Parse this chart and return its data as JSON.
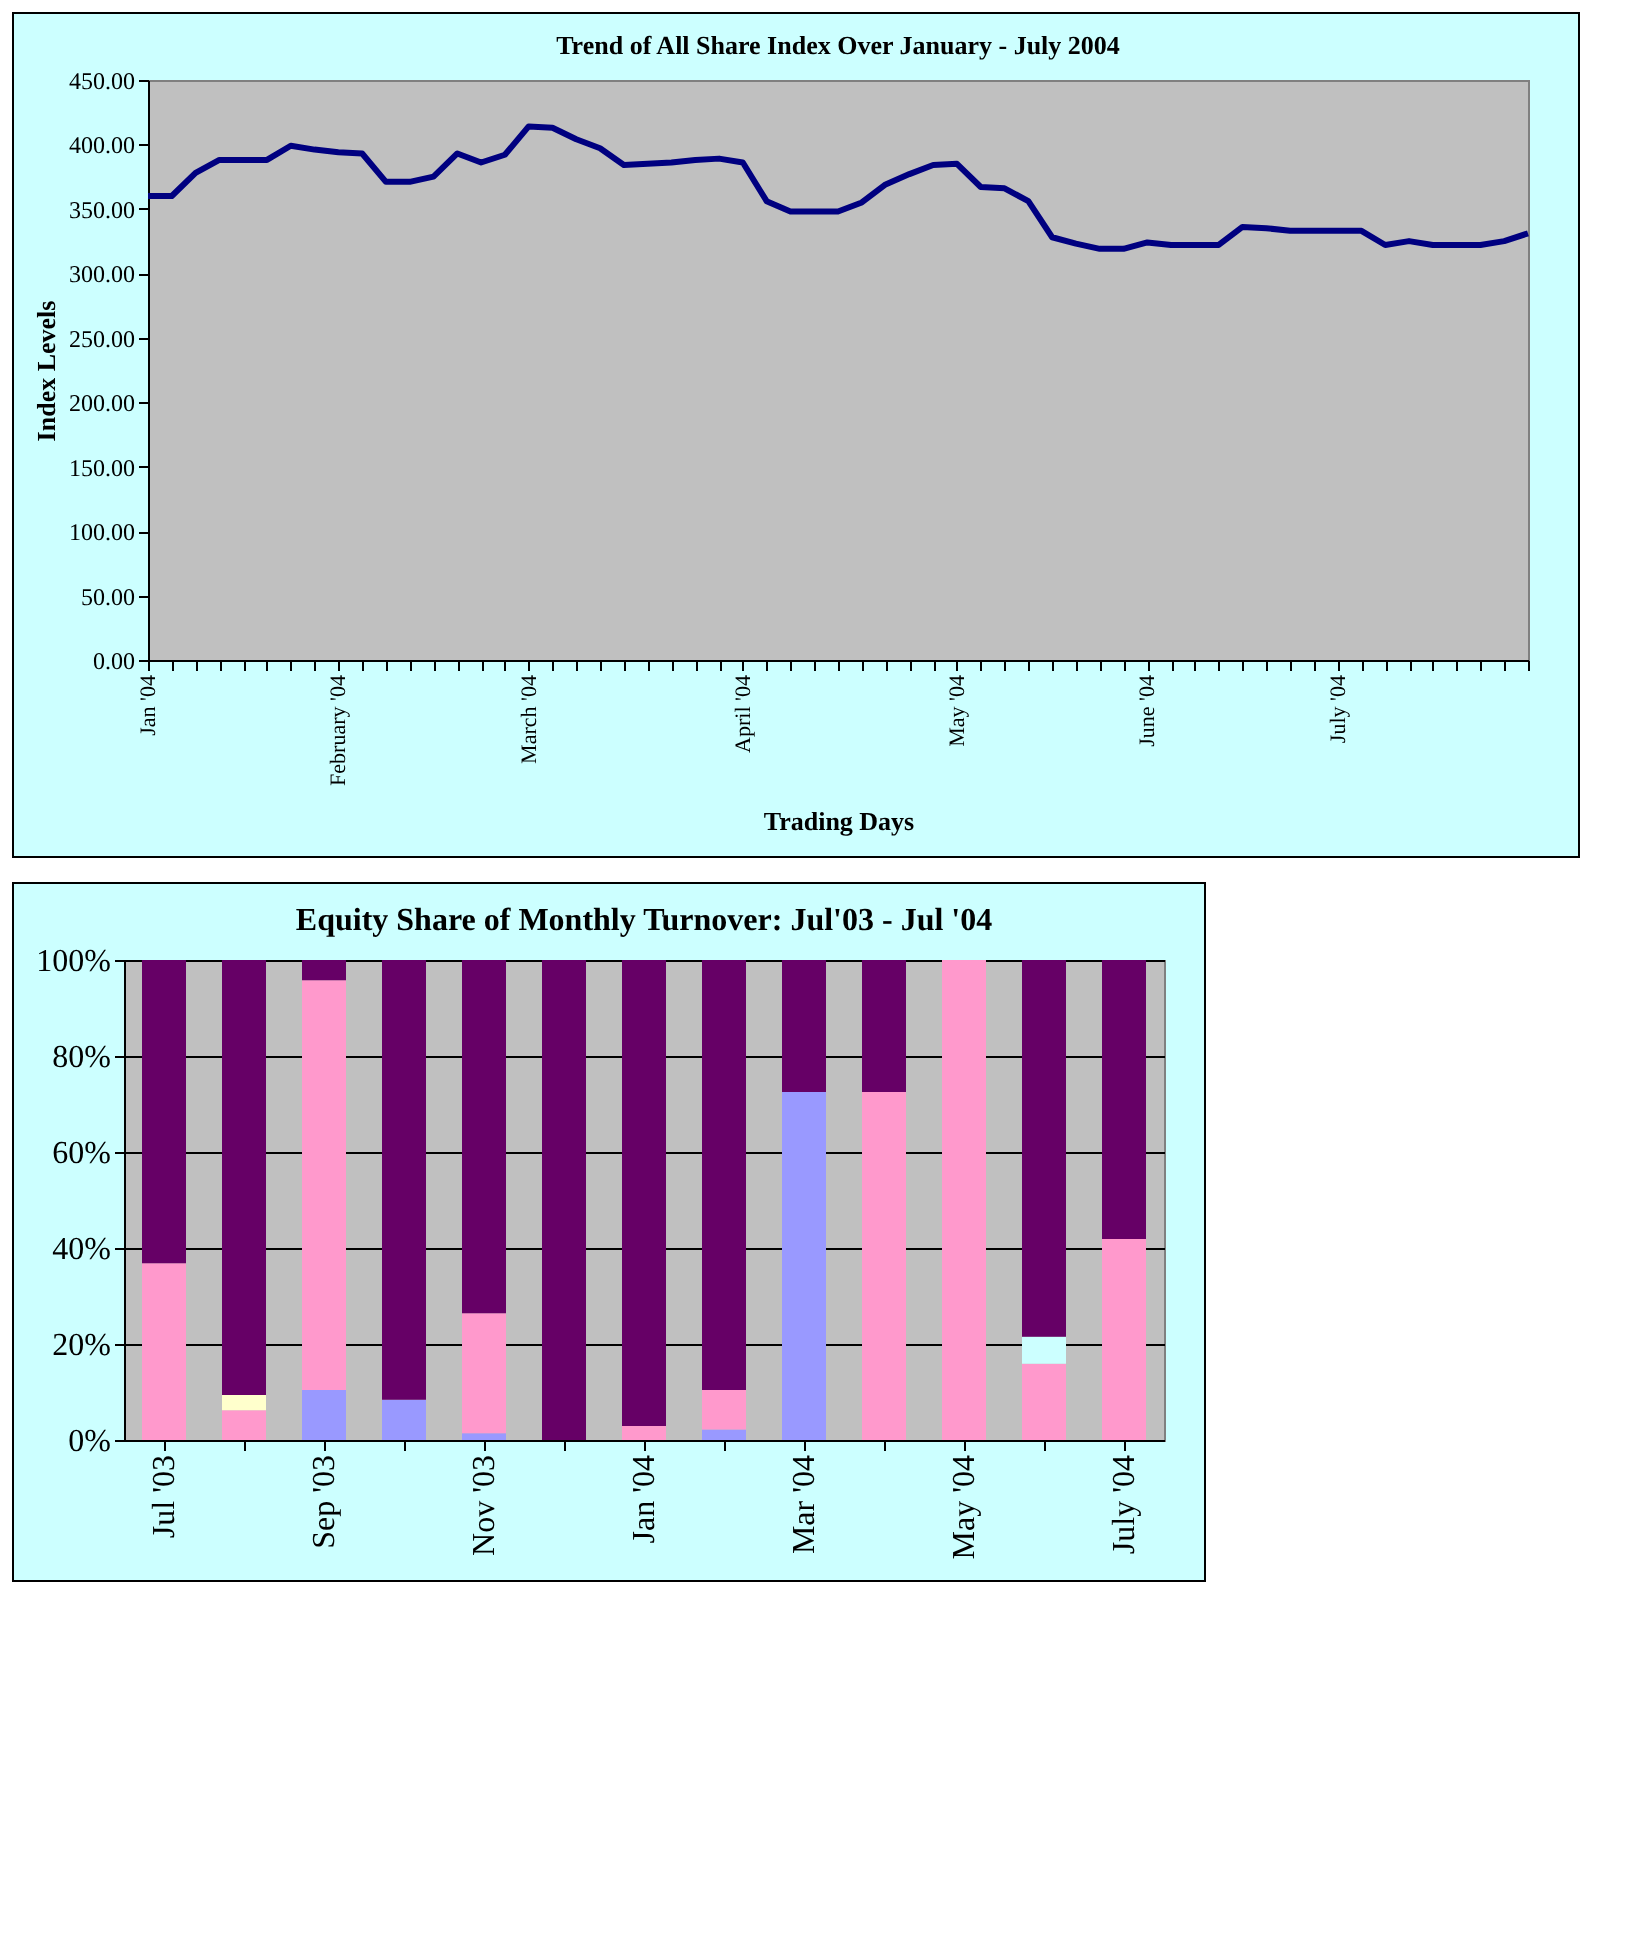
{
  "chart_data": [
    {
      "type": "line",
      "title": "Trend of All Share Index Over January  - July 2004",
      "xlabel": "Trading Days",
      "ylabel": "Index Levels",
      "color": "#000080",
      "categories": [
        "Jan '04",
        null,
        null,
        null,
        null,
        null,
        null,
        null,
        "February '04",
        null,
        null,
        null,
        null,
        null,
        null,
        null,
        "March '04",
        null,
        null,
        null,
        null,
        null,
        null,
        null,
        null,
        "April '04",
        null,
        null,
        null,
        null,
        null,
        null,
        null,
        null,
        "May '04",
        null,
        null,
        null,
        null,
        null,
        null,
        null,
        "June '04",
        null,
        null,
        null,
        null,
        null,
        null,
        null,
        "July '04",
        null,
        null,
        null,
        null,
        null,
        null,
        null,
        null
      ],
      "values": [
        360,
        360,
        378,
        388,
        388,
        388,
        399,
        396,
        394,
        393,
        371,
        371,
        375,
        393,
        386,
        392,
        414,
        413,
        404,
        397,
        384,
        385,
        386,
        388,
        389,
        386,
        356,
        348,
        348,
        348,
        355,
        369,
        377,
        384,
        385,
        367,
        366,
        356,
        328,
        323,
        319,
        319,
        324,
        322,
        322,
        322,
        336,
        335,
        333,
        333,
        333,
        333,
        322,
        325,
        322,
        322,
        322,
        325,
        331
      ],
      "ylim": [
        0,
        450
      ],
      "yticks": [
        {
          "value": 0,
          "label": "0.00"
        },
        {
          "value": 50,
          "label": "50.00"
        },
        {
          "value": 100,
          "label": "100.00"
        },
        {
          "value": 150,
          "label": "150.00"
        },
        {
          "value": 200,
          "label": "200.00"
        },
        {
          "value": 250,
          "label": "250.00"
        },
        {
          "value": 300,
          "label": "300.00"
        },
        {
          "value": 350,
          "label": "350.00"
        },
        {
          "value": 400,
          "label": "400.00"
        },
        {
          "value": 450,
          "label": "450.00"
        }
      ]
    },
    {
      "type": "bar",
      "stacked": true,
      "title": "Equity Share of Monthly Turnover: Jul'03 - Jul '04",
      "categories": [
        "Jul '03",
        null,
        "Sep '03",
        null,
        "Nov '03",
        null,
        "Jan '04",
        null,
        "Mar '04",
        null,
        "May '04",
        null,
        "July '04"
      ],
      "series": [
        {
          "color": "#9999ff",
          "values": [
            0,
            0,
            10.4,
            8.4,
            1.4,
            0,
            0,
            2.2,
            72.5,
            0,
            0,
            0,
            0
          ]
        },
        {
          "color": "#ff99cc",
          "values": [
            36.8,
            6.2,
            85.4,
            0,
            25.0,
            0,
            2.9,
            8.2,
            0,
            72.5,
            100,
            15.9,
            41.9
          ]
        },
        {
          "color": "#ffffcc",
          "values": [
            0,
            3.2,
            0,
            0,
            0,
            0,
            0,
            0,
            0,
            0,
            0,
            0,
            0
          ]
        },
        {
          "color": "#ccffff",
          "values": [
            0,
            0,
            0,
            0,
            0,
            0,
            0,
            0,
            0,
            0,
            0,
            5.6,
            0
          ]
        },
        {
          "color": "#660066",
          "values": [
            63.2,
            90.6,
            4.2,
            91.6,
            73.6,
            100,
            97.1,
            89.6,
            27.5,
            27.5,
            0,
            78.5,
            58.1
          ]
        }
      ],
      "ylim": [
        0,
        100
      ],
      "yticks": [
        {
          "value": 0,
          "label": "0%"
        },
        {
          "value": 20,
          "label": "20%"
        },
        {
          "value": 40,
          "label": "40%"
        },
        {
          "value": 60,
          "label": "60%"
        },
        {
          "value": 80,
          "label": "80%"
        },
        {
          "value": 100,
          "label": "100%"
        }
      ],
      "grid": "y"
    }
  ]
}
